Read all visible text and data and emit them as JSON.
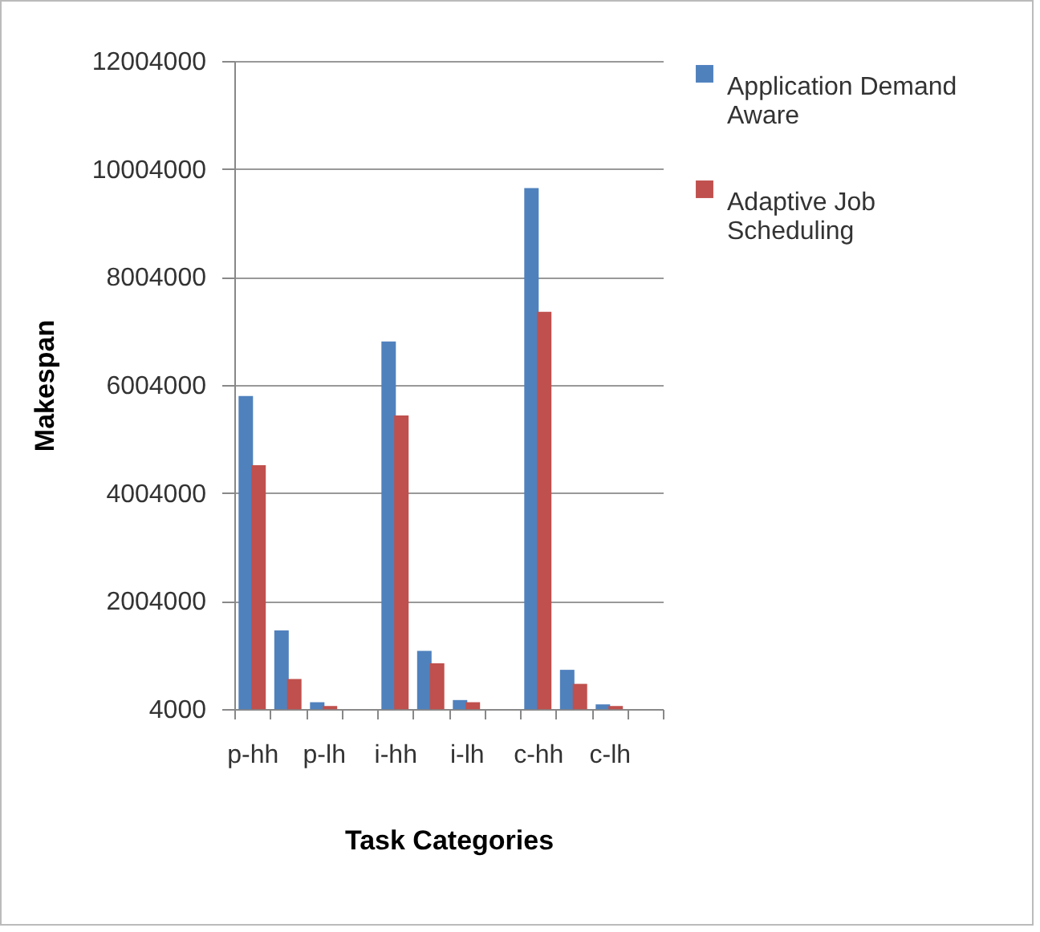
{
  "chart_data": {
    "type": "bar",
    "xlabel": "Task Categories",
    "ylabel": "Makespan",
    "categories": [
      "p-hh",
      null,
      "p-lh",
      null,
      "i-hh",
      null,
      "i-lh",
      null,
      "c-hh",
      null,
      "c-lh",
      null
    ],
    "series": [
      {
        "name": "Application Demand Aware",
        "color": "#4f81bd",
        "values": [
          5800000,
          1460000,
          130000,
          null,
          6810000,
          1080000,
          170000,
          null,
          9650000,
          730000,
          90000,
          null
        ]
      },
      {
        "name": "Adaptive Job Scheduling",
        "color": "#c0504d",
        "values": [
          4520000,
          560000,
          60000,
          null,
          5440000,
          850000,
          130000,
          null,
          7360000,
          470000,
          60000,
          null
        ]
      }
    ],
    "ylim": [
      4000,
      12004000
    ],
    "yticks": [
      4000,
      2004000,
      4004000,
      6004000,
      8004000,
      10004000,
      12004000
    ],
    "grid": "y",
    "legend": "right"
  }
}
